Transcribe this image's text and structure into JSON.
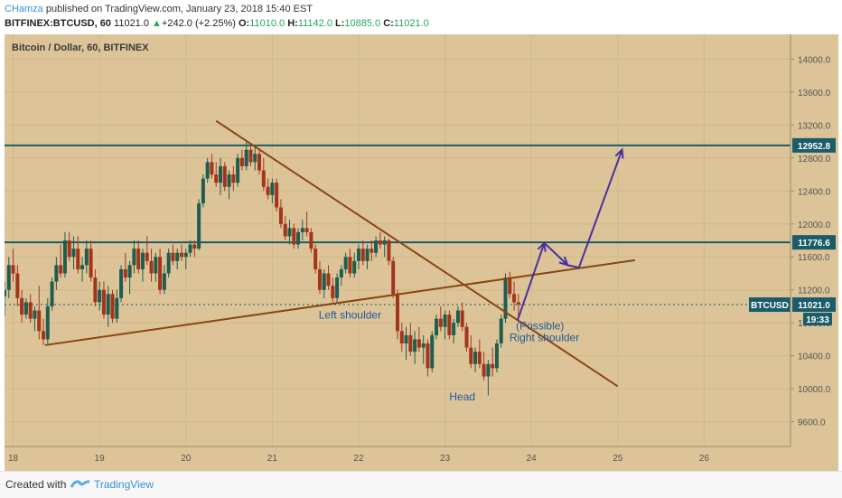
{
  "header": {
    "author": "CHamza",
    "published": "published on TradingView.com, January 23, 2018 15:40 EST",
    "symbol": "BITFINEX:BTCUSD, 60",
    "last": "11021.0",
    "change": "+242.0 (+2.25%)",
    "o_label": "O:",
    "o": "11010.0",
    "h_label": "H:",
    "h": "11142.0",
    "l_label": "L:",
    "l": "10885.0",
    "c_label": "C:",
    "c": "11021.0"
  },
  "footer": {
    "created_with": "Created with",
    "brand": "TradingView"
  },
  "colors": {
    "background": "#dcc498",
    "up_candle": "#1f5d50",
    "down_candle": "#a3351c",
    "trendline": "#8b4513",
    "level_line": "#1a5c6a",
    "arrow": "#4b2fa0",
    "label_text": "#1f5aa0"
  },
  "chart_data": {
    "type": "candlestick",
    "title": "Bitcoin / Dollar, 60, BITFINEX",
    "x_ticks": [
      "18",
      "19",
      "20",
      "21",
      "22",
      "23",
      "24",
      "25",
      "26"
    ],
    "y_ticks": [
      9600,
      10000,
      10400,
      10800,
      11200,
      11600,
      12000,
      12400,
      12800,
      13200,
      13600,
      14000
    ],
    "y_tick_labels": [
      "9600.0",
      "10000.0",
      "10400.0",
      "10800.0",
      "11200.0",
      "11600.0",
      "12000.0",
      "12400.0",
      "12800.0",
      "13200.0",
      "13600.0",
      "14000.0"
    ],
    "ylim": [
      9300,
      14300
    ],
    "xlim": [
      17.9,
      27.0
    ],
    "horizontal_levels": [
      {
        "value": 12952.8,
        "label": "12952.8"
      },
      {
        "value": 11776.6,
        "label": "11776.6"
      }
    ],
    "current_price": {
      "value": 11021.0,
      "symbol_label": "BTCUSD",
      "price_label": "11021.0",
      "countdown": "19:33"
    },
    "annotations": [
      {
        "text": "Left shoulder",
        "x": 21.9,
        "y": 10850
      },
      {
        "text": "Head",
        "x": 23.2,
        "y": 9860
      },
      {
        "text": "(Possible)",
        "x": 24.1,
        "y": 10720
      },
      {
        "text": "Right shoulder",
        "x": 24.15,
        "y": 10580
      }
    ],
    "trendlines": [
      {
        "name": "descending",
        "points": [
          [
            20.35,
            13250
          ],
          [
            25.0,
            10030
          ]
        ]
      },
      {
        "name": "neckline",
        "points": [
          [
            18.37,
            10530
          ],
          [
            25.2,
            11560
          ]
        ]
      }
    ],
    "projection_path": [
      [
        23.84,
        10830
      ],
      [
        24.15,
        11770
      ],
      [
        24.42,
        11500
      ],
      [
        24.55,
        11470
      ],
      [
        25.05,
        12900
      ]
    ],
    "candles": [
      {
        "x": 17.9,
        "o": 11120,
        "h": 11300,
        "l": 10880,
        "c": 11200
      },
      {
        "x": 17.95,
        "o": 11200,
        "h": 11600,
        "l": 11100,
        "c": 11500
      },
      {
        "x": 18.0,
        "o": 11500,
        "h": 11700,
        "l": 11300,
        "c": 11400
      },
      {
        "x": 18.05,
        "o": 11400,
        "h": 11500,
        "l": 11000,
        "c": 11100
      },
      {
        "x": 18.1,
        "o": 11100,
        "h": 11200,
        "l": 10800,
        "c": 10900
      },
      {
        "x": 18.15,
        "o": 10900,
        "h": 11100,
        "l": 10850,
        "c": 11050
      },
      {
        "x": 18.2,
        "o": 11050,
        "h": 11150,
        "l": 10800,
        "c": 10850
      },
      {
        "x": 18.25,
        "o": 10850,
        "h": 11000,
        "l": 10700,
        "c": 10950
      },
      {
        "x": 18.3,
        "o": 10950,
        "h": 11250,
        "l": 10600,
        "c": 10700
      },
      {
        "x": 18.35,
        "o": 10700,
        "h": 10850,
        "l": 10530,
        "c": 10600
      },
      {
        "x": 18.4,
        "o": 10600,
        "h": 11100,
        "l": 10550,
        "c": 11000
      },
      {
        "x": 18.45,
        "o": 11000,
        "h": 11350,
        "l": 10950,
        "c": 11300
      },
      {
        "x": 18.5,
        "o": 11300,
        "h": 11600,
        "l": 11200,
        "c": 11500
      },
      {
        "x": 18.55,
        "o": 11500,
        "h": 11750,
        "l": 11350,
        "c": 11400
      },
      {
        "x": 18.6,
        "o": 11400,
        "h": 11900,
        "l": 11350,
        "c": 11800
      },
      {
        "x": 18.65,
        "o": 11800,
        "h": 11900,
        "l": 11550,
        "c": 11600
      },
      {
        "x": 18.7,
        "o": 11600,
        "h": 11850,
        "l": 11450,
        "c": 11700
      },
      {
        "x": 18.75,
        "o": 11700,
        "h": 11850,
        "l": 11400,
        "c": 11450
      },
      {
        "x": 18.8,
        "o": 11450,
        "h": 11600,
        "l": 11300,
        "c": 11500
      },
      {
        "x": 18.85,
        "o": 11500,
        "h": 11800,
        "l": 11400,
        "c": 11700
      },
      {
        "x": 18.9,
        "o": 11700,
        "h": 11800,
        "l": 11300,
        "c": 11350
      },
      {
        "x": 18.95,
        "o": 11350,
        "h": 11450,
        "l": 11000,
        "c": 11050
      },
      {
        "x": 19.0,
        "o": 11050,
        "h": 11300,
        "l": 10950,
        "c": 11200
      },
      {
        "x": 19.05,
        "o": 11200,
        "h": 11300,
        "l": 10850,
        "c": 10900
      },
      {
        "x": 19.1,
        "o": 10900,
        "h": 11250,
        "l": 10750,
        "c": 11150
      },
      {
        "x": 19.15,
        "o": 11150,
        "h": 11200,
        "l": 10800,
        "c": 10850
      },
      {
        "x": 19.2,
        "o": 10850,
        "h": 11200,
        "l": 10800,
        "c": 11100
      },
      {
        "x": 19.25,
        "o": 11100,
        "h": 11500,
        "l": 11050,
        "c": 11450
      },
      {
        "x": 19.3,
        "o": 11450,
        "h": 11650,
        "l": 11300,
        "c": 11350
      },
      {
        "x": 19.35,
        "o": 11350,
        "h": 11550,
        "l": 11150,
        "c": 11500
      },
      {
        "x": 19.4,
        "o": 11500,
        "h": 11800,
        "l": 11400,
        "c": 11700
      },
      {
        "x": 19.45,
        "o": 11700,
        "h": 11800,
        "l": 11400,
        "c": 11450
      },
      {
        "x": 19.5,
        "o": 11450,
        "h": 11700,
        "l": 11300,
        "c": 11650
      },
      {
        "x": 19.55,
        "o": 11650,
        "h": 11850,
        "l": 11500,
        "c": 11550
      },
      {
        "x": 19.6,
        "o": 11550,
        "h": 11700,
        "l": 11300,
        "c": 11400
      },
      {
        "x": 19.65,
        "o": 11400,
        "h": 11650,
        "l": 11300,
        "c": 11600
      },
      {
        "x": 19.7,
        "o": 11600,
        "h": 11700,
        "l": 11150,
        "c": 11200
      },
      {
        "x": 19.75,
        "o": 11200,
        "h": 11500,
        "l": 11150,
        "c": 11400
      },
      {
        "x": 19.8,
        "o": 11400,
        "h": 11700,
        "l": 11350,
        "c": 11650
      },
      {
        "x": 19.85,
        "o": 11650,
        "h": 11750,
        "l": 11500,
        "c": 11550
      },
      {
        "x": 19.9,
        "o": 11550,
        "h": 11700,
        "l": 11450,
        "c": 11650
      },
      {
        "x": 19.95,
        "o": 11650,
        "h": 11750,
        "l": 11550,
        "c": 11600
      },
      {
        "x": 20.0,
        "o": 11600,
        "h": 11700,
        "l": 11450,
        "c": 11650
      },
      {
        "x": 20.05,
        "o": 11650,
        "h": 11800,
        "l": 11600,
        "c": 11750
      },
      {
        "x": 20.1,
        "o": 11750,
        "h": 11800,
        "l": 11600,
        "c": 11700
      },
      {
        "x": 20.15,
        "o": 11700,
        "h": 12300,
        "l": 11680,
        "c": 12250
      },
      {
        "x": 20.2,
        "o": 12250,
        "h": 12600,
        "l": 12200,
        "c": 12550
      },
      {
        "x": 20.25,
        "o": 12550,
        "h": 12800,
        "l": 12500,
        "c": 12750
      },
      {
        "x": 20.3,
        "o": 12750,
        "h": 12850,
        "l": 12550,
        "c": 12600
      },
      {
        "x": 20.35,
        "o": 12600,
        "h": 12750,
        "l": 12450,
        "c": 12500
      },
      {
        "x": 20.4,
        "o": 12500,
        "h": 12800,
        "l": 12350,
        "c": 12700
      },
      {
        "x": 20.45,
        "o": 12700,
        "h": 12750,
        "l": 12400,
        "c": 12450
      },
      {
        "x": 20.5,
        "o": 12450,
        "h": 12650,
        "l": 12300,
        "c": 12600
      },
      {
        "x": 20.55,
        "o": 12600,
        "h": 12700,
        "l": 12400,
        "c": 12500
      },
      {
        "x": 20.6,
        "o": 12500,
        "h": 12850,
        "l": 12450,
        "c": 12800
      },
      {
        "x": 20.65,
        "o": 12800,
        "h": 12900,
        "l": 12650,
        "c": 12700
      },
      {
        "x": 20.7,
        "o": 12700,
        "h": 13000,
        "l": 12650,
        "c": 12900
      },
      {
        "x": 20.75,
        "o": 12900,
        "h": 12950,
        "l": 12700,
        "c": 12750
      },
      {
        "x": 20.8,
        "o": 12750,
        "h": 12950,
        "l": 12650,
        "c": 12850
      },
      {
        "x": 20.85,
        "o": 12850,
        "h": 12900,
        "l": 12600,
        "c": 12650
      },
      {
        "x": 20.9,
        "o": 12650,
        "h": 12800,
        "l": 12400,
        "c": 12450
      },
      {
        "x": 20.95,
        "o": 12450,
        "h": 12550,
        "l": 12300,
        "c": 12350
      },
      {
        "x": 21.0,
        "o": 12350,
        "h": 12550,
        "l": 12250,
        "c": 12500
      },
      {
        "x": 21.05,
        "o": 12500,
        "h": 12550,
        "l": 12150,
        "c": 12200
      },
      {
        "x": 21.1,
        "o": 12200,
        "h": 12300,
        "l": 11950,
        "c": 12000
      },
      {
        "x": 21.15,
        "o": 12000,
        "h": 12100,
        "l": 11800,
        "c": 11850
      },
      {
        "x": 21.2,
        "o": 11850,
        "h": 12050,
        "l": 11750,
        "c": 11950
      },
      {
        "x": 21.25,
        "o": 11950,
        "h": 12000,
        "l": 11700,
        "c": 11750
      },
      {
        "x": 21.3,
        "o": 11750,
        "h": 11950,
        "l": 11700,
        "c": 11900
      },
      {
        "x": 21.35,
        "o": 11900,
        "h": 12050,
        "l": 11800,
        "c": 11950
      },
      {
        "x": 21.4,
        "o": 11950,
        "h": 12150,
        "l": 11850,
        "c": 11900
      },
      {
        "x": 21.45,
        "o": 11900,
        "h": 11950,
        "l": 11650,
        "c": 11700
      },
      {
        "x": 21.5,
        "o": 11700,
        "h": 11750,
        "l": 11400,
        "c": 11450
      },
      {
        "x": 21.55,
        "o": 11450,
        "h": 11550,
        "l": 11150,
        "c": 11200
      },
      {
        "x": 21.6,
        "o": 11200,
        "h": 11450,
        "l": 11100,
        "c": 11400
      },
      {
        "x": 21.65,
        "o": 11400,
        "h": 11500,
        "l": 11200,
        "c": 11250
      },
      {
        "x": 21.7,
        "o": 11250,
        "h": 11350,
        "l": 11050,
        "c": 11100
      },
      {
        "x": 21.75,
        "o": 11100,
        "h": 11400,
        "l": 11050,
        "c": 11350
      },
      {
        "x": 21.8,
        "o": 11350,
        "h": 11500,
        "l": 11250,
        "c": 11450
      },
      {
        "x": 21.85,
        "o": 11450,
        "h": 11650,
        "l": 11400,
        "c": 11600
      },
      {
        "x": 21.9,
        "o": 11600,
        "h": 11700,
        "l": 11350,
        "c": 11400
      },
      {
        "x": 21.95,
        "o": 11400,
        "h": 11650,
        "l": 11350,
        "c": 11550
      },
      {
        "x": 22.0,
        "o": 11550,
        "h": 11750,
        "l": 11450,
        "c": 11700
      },
      {
        "x": 22.05,
        "o": 11700,
        "h": 11800,
        "l": 11500,
        "c": 11550
      },
      {
        "x": 22.1,
        "o": 11550,
        "h": 11750,
        "l": 11450,
        "c": 11700
      },
      {
        "x": 22.15,
        "o": 11700,
        "h": 11800,
        "l": 11550,
        "c": 11650
      },
      {
        "x": 22.2,
        "o": 11650,
        "h": 11850,
        "l": 11600,
        "c": 11800
      },
      {
        "x": 22.25,
        "o": 11800,
        "h": 11900,
        "l": 11700,
        "c": 11750
      },
      {
        "x": 22.3,
        "o": 11750,
        "h": 11850,
        "l": 11600,
        "c": 11800
      },
      {
        "x": 22.35,
        "o": 11800,
        "h": 11820,
        "l": 11500,
        "c": 11550
      },
      {
        "x": 22.4,
        "o": 11550,
        "h": 11600,
        "l": 11100,
        "c": 11150
      },
      {
        "x": 22.45,
        "o": 11150,
        "h": 11200,
        "l": 10600,
        "c": 10700
      },
      {
        "x": 22.5,
        "o": 10700,
        "h": 10800,
        "l": 10450,
        "c": 10550
      },
      {
        "x": 22.55,
        "o": 10550,
        "h": 10750,
        "l": 10350,
        "c": 10650
      },
      {
        "x": 22.6,
        "o": 10650,
        "h": 10800,
        "l": 10400,
        "c": 10450
      },
      {
        "x": 22.65,
        "o": 10450,
        "h": 10700,
        "l": 10300,
        "c": 10600
      },
      {
        "x": 22.7,
        "o": 10600,
        "h": 10750,
        "l": 10450,
        "c": 10500
      },
      {
        "x": 22.75,
        "o": 10500,
        "h": 10650,
        "l": 10300,
        "c": 10550
      },
      {
        "x": 22.8,
        "o": 10550,
        "h": 10600,
        "l": 10150,
        "c": 10250
      },
      {
        "x": 22.85,
        "o": 10250,
        "h": 10700,
        "l": 10200,
        "c": 10650
      },
      {
        "x": 22.9,
        "o": 10650,
        "h": 10900,
        "l": 10600,
        "c": 10850
      },
      {
        "x": 22.95,
        "o": 10850,
        "h": 11000,
        "l": 10700,
        "c": 10750
      },
      {
        "x": 23.0,
        "o": 10750,
        "h": 10950,
        "l": 10600,
        "c": 10900
      },
      {
        "x": 23.05,
        "o": 10900,
        "h": 10950,
        "l": 10600,
        "c": 10650
      },
      {
        "x": 23.1,
        "o": 10650,
        "h": 10850,
        "l": 10550,
        "c": 10800
      },
      {
        "x": 23.15,
        "o": 10800,
        "h": 11000,
        "l": 10750,
        "c": 10950
      },
      {
        "x": 23.2,
        "o": 10950,
        "h": 11050,
        "l": 10700,
        "c": 10750
      },
      {
        "x": 23.25,
        "o": 10750,
        "h": 10800,
        "l": 10450,
        "c": 10500
      },
      {
        "x": 23.3,
        "o": 10500,
        "h": 10650,
        "l": 10250,
        "c": 10300
      },
      {
        "x": 23.35,
        "o": 10300,
        "h": 10500,
        "l": 10200,
        "c": 10450
      },
      {
        "x": 23.4,
        "o": 10450,
        "h": 10600,
        "l": 10250,
        "c": 10300
      },
      {
        "x": 23.45,
        "o": 10300,
        "h": 10450,
        "l": 10100,
        "c": 10150
      },
      {
        "x": 23.5,
        "o": 10150,
        "h": 10350,
        "l": 9920,
        "c": 10300
      },
      {
        "x": 23.55,
        "o": 10300,
        "h": 10500,
        "l": 10150,
        "c": 10250
      },
      {
        "x": 23.6,
        "o": 10250,
        "h": 10600,
        "l": 10200,
        "c": 10550
      },
      {
        "x": 23.65,
        "o": 10550,
        "h": 10900,
        "l": 10500,
        "c": 10850
      },
      {
        "x": 23.7,
        "o": 10850,
        "h": 11400,
        "l": 10800,
        "c": 11350
      },
      {
        "x": 23.75,
        "o": 11350,
        "h": 11420,
        "l": 11100,
        "c": 11150
      },
      {
        "x": 23.8,
        "o": 11150,
        "h": 11300,
        "l": 10950,
        "c": 11050
      },
      {
        "x": 23.85,
        "o": 11050,
        "h": 11150,
        "l": 10880,
        "c": 11021
      }
    ]
  }
}
